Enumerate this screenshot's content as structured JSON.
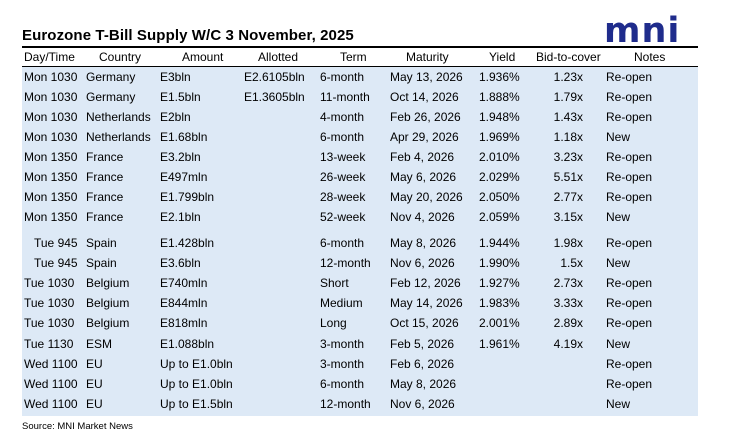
{
  "title": "Eurozone T-Bill Supply W/C 3 November, 2025",
  "logo": "mni",
  "columns": [
    "Day/Time",
    "Country",
    "Amount",
    "Allotted",
    "Term",
    "Maturity",
    "Yield",
    "Bid-to-cover",
    "Notes"
  ],
  "rows": [
    {
      "day_time": "Mon 1030",
      "country": "Germany",
      "amount": "E3bln",
      "allotted": "E2.6105bln",
      "term": "6-month",
      "maturity": "May 13, 2026",
      "yield": "1.936%",
      "btc": "1.23x",
      "notes": "Re-open"
    },
    {
      "day_time": "Mon 1030",
      "country": "Germany",
      "amount": "E1.5bln",
      "allotted": "E1.3605bln",
      "term": "11-month",
      "maturity": "Oct 14, 2026",
      "yield": "1.888%",
      "btc": "1.79x",
      "notes": "Re-open"
    },
    {
      "day_time": "Mon 1030",
      "country": "Netherlands",
      "amount": "E2bln",
      "allotted": "",
      "term": "4-month",
      "maturity": "Feb 26, 2026",
      "yield": "1.948%",
      "btc": "1.43x",
      "notes": "Re-open"
    },
    {
      "day_time": "Mon 1030",
      "country": "Netherlands",
      "amount": "E1.68bln",
      "allotted": "",
      "term": "6-month",
      "maturity": "Apr 29, 2026",
      "yield": "1.969%",
      "btc": "1.18x",
      "notes": "New"
    },
    {
      "day_time": "Mon 1350",
      "country": "France",
      "amount": "E3.2bln",
      "allotted": "",
      "term": "13-week",
      "maturity": "Feb 4, 2026",
      "yield": "2.010%",
      "btc": "3.23x",
      "notes": "Re-open"
    },
    {
      "day_time": "Mon 1350",
      "country": "France",
      "amount": "E497mln",
      "allotted": "",
      "term": "26-week",
      "maturity": "May 6, 2026",
      "yield": "2.029%",
      "btc": "5.51x",
      "notes": "Re-open"
    },
    {
      "day_time": "Mon 1350",
      "country": "France",
      "amount": "E1.799bln",
      "allotted": "",
      "term": "28-week",
      "maturity": "May 20, 2026",
      "yield": "2.050%",
      "btc": "2.77x",
      "notes": "Re-open"
    },
    {
      "day_time": "Mon 1350",
      "country": "France",
      "amount": "E2.1bln",
      "allotted": "",
      "term": "52-week",
      "maturity": "Nov 4, 2026",
      "yield": "2.059%",
      "btc": "3.15x",
      "notes": "New"
    },
    {
      "day_time": "Tue 945",
      "country": "Spain",
      "amount": "E1.428bln",
      "allotted": "",
      "term": "6-month",
      "maturity": "May 8, 2026",
      "yield": "1.944%",
      "btc": "1.98x",
      "notes": "Re-open"
    },
    {
      "day_time": "Tue 945",
      "country": "Spain",
      "amount": "E3.6bln",
      "allotted": "",
      "term": "12-month",
      "maturity": "Nov 6, 2026",
      "yield": "1.990%",
      "btc": "1.5x",
      "notes": "New"
    },
    {
      "day_time": "Tue 1030",
      "country": "Belgium",
      "amount": "E740mln",
      "allotted": "",
      "term": "Short",
      "maturity": "Feb 12, 2026",
      "yield": "1.927%",
      "btc": "2.73x",
      "notes": "Re-open"
    },
    {
      "day_time": "Tue 1030",
      "country": "Belgium",
      "amount": "E844mln",
      "allotted": "",
      "term": "Medium",
      "maturity": "May 14, 2026",
      "yield": "1.983%",
      "btc": "3.33x",
      "notes": "Re-open"
    },
    {
      "day_time": "Tue 1030",
      "country": "Belgium",
      "amount": "E818mln",
      "allotted": "",
      "term": "Long",
      "maturity": "Oct 15, 2026",
      "yield": "2.001%",
      "btc": "2.89x",
      "notes": "Re-open"
    },
    {
      "day_time": "Tue 1130",
      "country": "ESM",
      "amount": "E1.088bln",
      "allotted": "",
      "term": "3-month",
      "maturity": "Feb 5, 2026",
      "yield": "1.961%",
      "btc": "4.19x",
      "notes": "New"
    },
    {
      "day_time": "Wed 1100",
      "country": "EU",
      "amount": "Up to E1.0bln",
      "allotted": "",
      "term": "3-month",
      "maturity": "Feb 6, 2026",
      "yield": "",
      "btc": "",
      "notes": "Re-open"
    },
    {
      "day_time": "Wed 1100",
      "country": "EU",
      "amount": "Up to E1.0bln",
      "allotted": "",
      "term": "6-month",
      "maturity": "May 8, 2026",
      "yield": "",
      "btc": "",
      "notes": "Re-open"
    },
    {
      "day_time": "Wed 1100",
      "country": "EU",
      "amount": "Up to E1.5bln",
      "allotted": "",
      "term": "12-month",
      "maturity": "Nov 6, 2026",
      "yield": "",
      "btc": "",
      "notes": "New"
    }
  ],
  "source": "Source: MNI Market News",
  "colors": {
    "logo": "#1f2c8c",
    "row_bg": "#dde9f6"
  }
}
